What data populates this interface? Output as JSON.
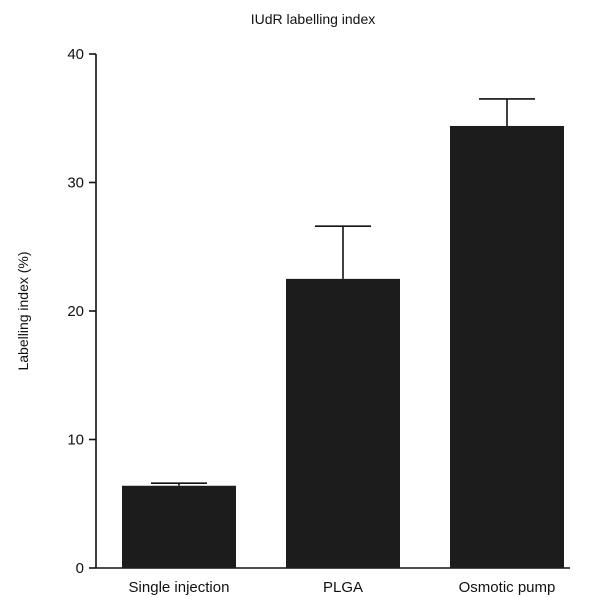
{
  "chart_data": {
    "type": "bar",
    "title": "IUdR labelling index",
    "xlabel": "",
    "ylabel": "Labelling index (%)",
    "categories": [
      "Single injection",
      "PLGA",
      "Osmotic pump"
    ],
    "values": [
      6.4,
      22.5,
      34.4
    ],
    "error_upper": [
      0.2,
      4.1,
      2.1
    ],
    "ylim": [
      0,
      40
    ],
    "yticks": [
      0,
      10,
      20,
      30,
      40
    ],
    "grid": false,
    "legend": "none",
    "bar_color": "#1c1c1c"
  }
}
